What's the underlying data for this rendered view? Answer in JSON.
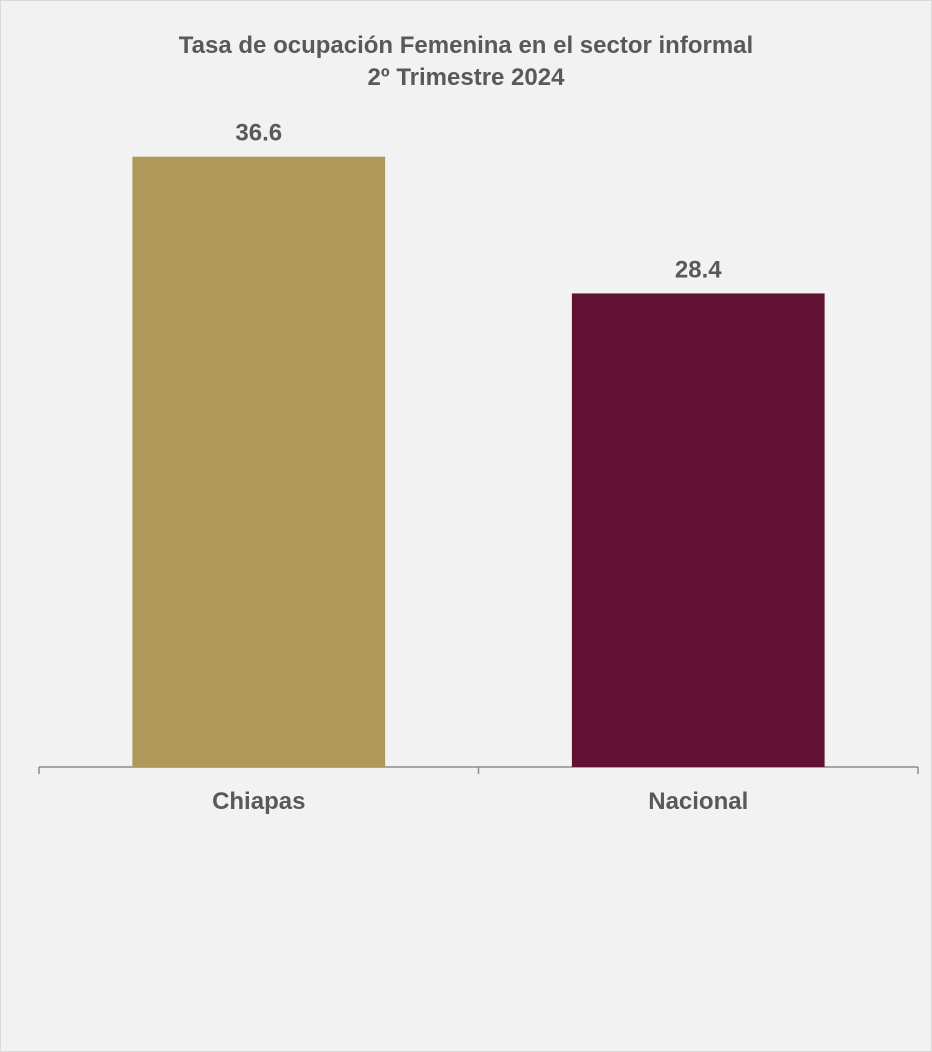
{
  "chart_data": {
    "type": "bar",
    "title": "Tasa de ocupación Femenina en el sector informal",
    "subtitle": "2º Trimestre 2024",
    "categories": [
      "Chiapas",
      "Nacional"
    ],
    "values": [
      36.6,
      28.4
    ],
    "colors": [
      "#b0985a",
      "#611232"
    ],
    "data_labels": [
      "36.6",
      "28.4"
    ],
    "ylim": [
      0,
      40
    ],
    "grid": false,
    "legend": "none"
  }
}
